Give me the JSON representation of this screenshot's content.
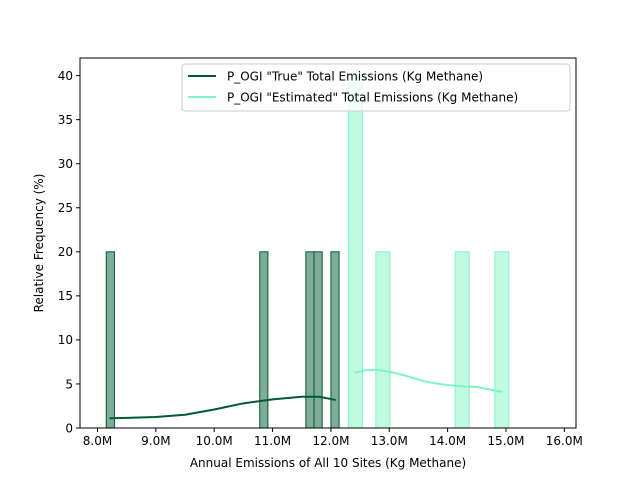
{
  "chart_data": {
    "type": "bar",
    "title": "",
    "xlabel": "Annual Emissions of All 10 Sites (Kg Methane)",
    "ylabel": "Relative Frequency (%)",
    "xlim": [
      7.7,
      16.2
    ],
    "ylim": [
      0,
      42
    ],
    "x_ticks": [
      8.0,
      9.0,
      10.0,
      11.0,
      12.0,
      13.0,
      14.0,
      15.0,
      16.0
    ],
    "x_tick_labels": [
      "8.0M",
      "9.0M",
      "10.0M",
      "11.0M",
      "12.0M",
      "13.0M",
      "14.0M",
      "15.0M",
      "16.0M"
    ],
    "y_ticks": [
      0,
      5,
      10,
      15,
      20,
      25,
      30,
      35,
      40
    ],
    "y_tick_labels": [
      "0",
      "5",
      "10",
      "15",
      "20",
      "25",
      "30",
      "35",
      "40"
    ],
    "legend_position": "top-right",
    "series": [
      {
        "name": "P_OGI \"True\" Total Emissions (Kg Methane)",
        "line_color": "#005a32",
        "bar_fill": "#7fac98",
        "bar_edge": "#005a32",
        "bins": [
          {
            "x0": 8.15,
            "x1": 8.29,
            "value": 20
          },
          {
            "x0": 10.78,
            "x1": 10.92,
            "value": 20
          },
          {
            "x0": 11.57,
            "x1": 11.71,
            "value": 20
          },
          {
            "x0": 11.71,
            "x1": 11.85,
            "value": 20
          },
          {
            "x0": 12.0,
            "x1": 12.14,
            "value": 20
          }
        ],
        "kde": [
          [
            8.22,
            1.1
          ],
          [
            8.5,
            1.15
          ],
          [
            9.0,
            1.25
          ],
          [
            9.5,
            1.5
          ],
          [
            10.0,
            2.1
          ],
          [
            10.5,
            2.8
          ],
          [
            11.0,
            3.25
          ],
          [
            11.5,
            3.55
          ],
          [
            11.8,
            3.55
          ],
          [
            12.07,
            3.2
          ]
        ]
      },
      {
        "name": "P_OGI \"Estimated\" Total Emissions (Kg Methane)",
        "line_color": "#80f5c3",
        "bar_fill": "#bffae1",
        "bar_edge": "#80f5c3",
        "bins": [
          {
            "x0": 12.3,
            "x1": 12.54,
            "value": 40
          },
          {
            "x0": 12.77,
            "x1": 13.01,
            "value": 20
          },
          {
            "x0": 14.13,
            "x1": 14.37,
            "value": 20
          },
          {
            "x0": 14.81,
            "x1": 15.05,
            "value": 20
          }
        ],
        "kde": [
          [
            12.42,
            6.3
          ],
          [
            12.6,
            6.55
          ],
          [
            12.8,
            6.6
          ],
          [
            13.0,
            6.4
          ],
          [
            13.3,
            5.9
          ],
          [
            13.6,
            5.3
          ],
          [
            13.9,
            4.95
          ],
          [
            14.2,
            4.75
          ],
          [
            14.5,
            4.65
          ],
          [
            14.7,
            4.4
          ],
          [
            14.93,
            4.1
          ]
        ]
      }
    ]
  }
}
